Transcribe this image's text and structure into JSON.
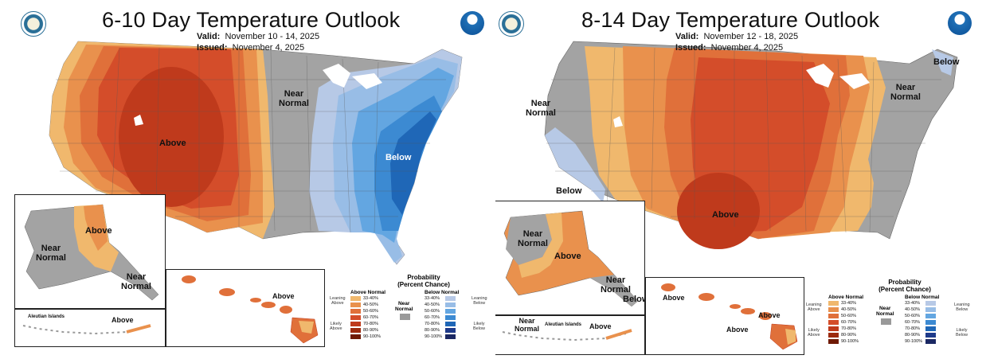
{
  "colors": {
    "near": "#a3a3a3",
    "above": [
      "#f0b86d",
      "#e9914d",
      "#e0703a",
      "#d44d2a",
      "#bf3a1c",
      "#9c2a0e",
      "#6f1a05"
    ],
    "below": [
      "#b7c9e6",
      "#98bde6",
      "#63a6e1",
      "#3c8ad2",
      "#1f67b7",
      "#1e3a8a",
      "#1b2863"
    ]
  },
  "panel1": {
    "title": "6-10 Day Temperature Outlook",
    "valid_label": "Valid:",
    "valid_value": "November 10 - 14, 2025",
    "issued_label": "Issued:",
    "issued_value": "November 4, 2025",
    "labels": {
      "above_main": "Above",
      "near_ne_1": "Near",
      "near_ne_2": "Normal",
      "below_main": "Below",
      "ak_near_1": "Near",
      "ak_near_2": "Normal",
      "ak_above": "Above",
      "ak_se_near_1": "Near",
      "ak_se_near_2": "Normal",
      "aleutian": "Aleutian Islands",
      "aleutian_above": "Above",
      "hi_above": "Above"
    },
    "legend": {
      "title_1": "Probability",
      "title_2": "(Percent Chance)",
      "above_head": "Above Normal",
      "near_head_1": "Near",
      "near_head_2": "Normal",
      "below_head": "Below Normal",
      "leaning_above_1": "Leaning",
      "leaning_above_2": "Above",
      "likely_above_1": "Likely",
      "likely_above_2": "Above",
      "leaning_below_1": "Leaning",
      "leaning_below_2": "Below",
      "likely_below_1": "Likely",
      "likely_below_2": "Below",
      "ranges": [
        "33-40%",
        "40-50%",
        "50-60%",
        "60-70%",
        "70-80%",
        "80-90%",
        "90-100%"
      ]
    }
  },
  "panel2": {
    "title": "8-14 Day Temperature Outlook",
    "valid_label": "Valid:",
    "valid_value": "November 12 - 18, 2025",
    "issued_label": "Issued:",
    "issued_value": "November 4, 2025",
    "labels": {
      "near_w_1": "Near",
      "near_w_2": "Normal",
      "below_sw": "Below",
      "above_main": "Above",
      "near_ne_1": "Near",
      "near_ne_2": "Normal",
      "below_ne": "Below",
      "ak_near_1": "Near",
      "ak_near_2": "Normal",
      "ak_above": "Above",
      "ak_se_near_1": "Near",
      "ak_se_near_2": "Normal",
      "ak_se_below": "Below",
      "aleutian_near_1": "Near",
      "aleutian_near_2": "Normal",
      "aleutian": "Aleutian Islands",
      "aleutian_above": "Above",
      "hi_above_1": "Above",
      "hi_above_2": "Above",
      "hi_above_3": "Above"
    },
    "legend": {
      "title_1": "Probability",
      "title_2": "(Percent Chance)",
      "above_head": "Above Normal",
      "near_head_1": "Near",
      "near_head_2": "Normal",
      "below_head": "Below Normal",
      "leaning_above_1": "Leaning",
      "leaning_above_2": "Above",
      "likely_above_1": "Likely",
      "likely_above_2": "Above",
      "leaning_below_1": "Leaning",
      "leaning_below_2": "Below",
      "likely_below_1": "Likely",
      "likely_below_2": "Below",
      "ranges": [
        "33-40%",
        "40-50%",
        "50-60%",
        "60-70%",
        "70-80%",
        "80-90%",
        "90-100%"
      ]
    }
  }
}
